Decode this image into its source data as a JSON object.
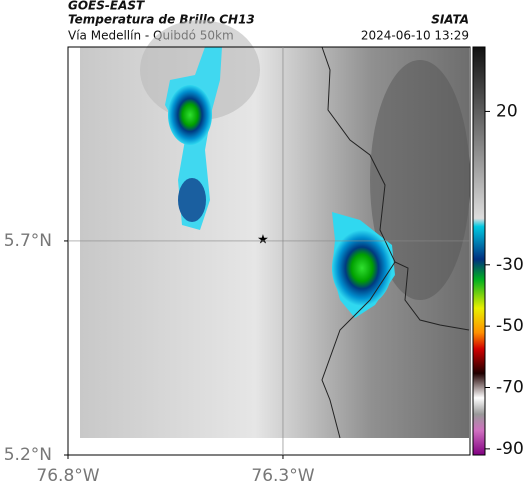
{
  "header": {
    "source": "GOES-EAST",
    "product": "Temperatura de Brillo CH13",
    "route": "Vía Medellín - Quibdó 50km",
    "org": "SIATA",
    "datetime": "2024-06-10 13:29"
  },
  "map": {
    "xlim": [
      -76.8,
      -75.865
    ],
    "ylim": [
      5.2,
      6.153
    ],
    "xticks": [
      {
        "value": -76.8,
        "label": "76.8°W"
      },
      {
        "value": -76.3,
        "label": "76.3°W"
      }
    ],
    "yticks": [
      {
        "value": 5.7,
        "label": "5.7°N"
      },
      {
        "value": 5.2,
        "label": "5.2°N"
      }
    ],
    "grid": true
  },
  "colorbar": {
    "lim": [
      -92,
      41
    ],
    "ticks": [
      20,
      -30,
      -50,
      -70,
      -90
    ]
  }
}
